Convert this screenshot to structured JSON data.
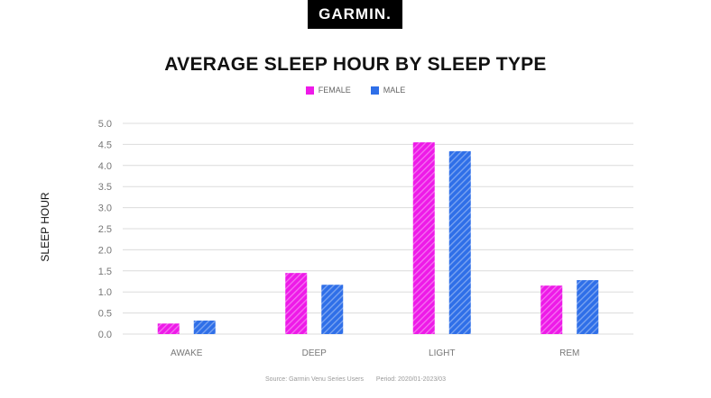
{
  "logo": {
    "text": "GARMIN."
  },
  "colors": {
    "female": "#ee1ae8",
    "male": "#2f6fe8",
    "grid": "#dcdcdc",
    "axis_text": "#777777"
  },
  "chart_data": {
    "type": "bar",
    "title": "AVERAGE SLEEP HOUR BY SLEEP TYPE",
    "ylabel": "SLEEP HOUR",
    "xlabel": "",
    "categories": [
      "AWAKE",
      "DEEP",
      "LIGHT",
      "REM"
    ],
    "series": [
      {
        "name": "FEMALE",
        "values": [
          0.25,
          1.45,
          4.55,
          1.15
        ]
      },
      {
        "name": "MALE",
        "values": [
          0.32,
          1.17,
          4.34,
          1.28
        ]
      }
    ],
    "ylim": [
      0,
      5
    ],
    "yticks": [
      "0.0",
      "0.5",
      "1.0",
      "1.5",
      "2.0",
      "2.5",
      "3.0",
      "3.5",
      "4.0",
      "4.5",
      "5.0"
    ],
    "grid": true,
    "legend_position": "top-center",
    "bar_pattern": "diagonal-stripes"
  },
  "footer": {
    "source": "Source: Garmin Venu Series Users",
    "period": "Period: 2020/01-2023/03"
  }
}
